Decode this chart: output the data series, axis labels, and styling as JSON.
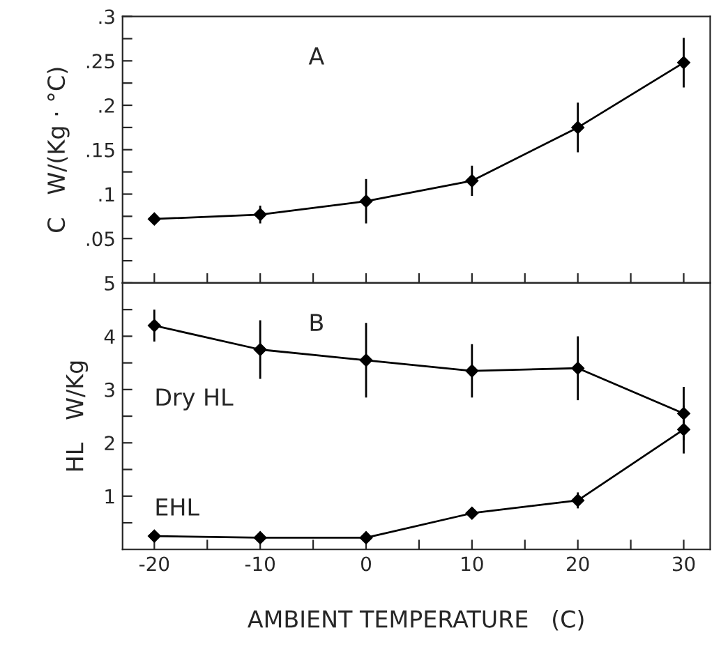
{
  "chart_data": [
    {
      "type": "line",
      "title": "A",
      "ylabel": "C   W/(Kg · °C)",
      "x": [
        -20,
        -10,
        0,
        10,
        20,
        30
      ],
      "series": [
        {
          "color": "#000000",
          "values": [
            0.072,
            0.077,
            0.092,
            0.115,
            0.175,
            0.248
          ],
          "errors": [
            0.003,
            0.01,
            0.025,
            0.017,
            0.028,
            0.028
          ]
        }
      ],
      "xlim": [
        -23,
        32.5
      ],
      "xticks": [
        -20,
        -15,
        -10,
        -5,
        0,
        5,
        10,
        15,
        20,
        25,
        30
      ],
      "ylim": [
        0,
        0.3
      ],
      "yticks": [
        {
          "value": 0.025,
          "label": null
        },
        {
          "value": 0.05,
          "label": ".05"
        },
        {
          "value": 0.075,
          "label": null
        },
        {
          "value": 0.1,
          "label": ".1"
        },
        {
          "value": 0.125,
          "label": null
        },
        {
          "value": 0.15,
          "label": ".15"
        },
        {
          "value": 0.175,
          "label": null
        },
        {
          "value": 0.2,
          "label": ".2"
        },
        {
          "value": 0.225,
          "label": null
        },
        {
          "value": 0.25,
          "label": ".25"
        },
        {
          "value": 0.275,
          "label": null
        },
        {
          "value": 0.3,
          "label": ".3"
        }
      ],
      "tick_labels": "y",
      "marker": "diamond",
      "line_style": "solid",
      "grid": false
    },
    {
      "type": "line",
      "title": "B",
      "xlabel": "AMBIENT TEMPERATURE   (C)",
      "ylabel": "HL   W/Kg",
      "x": [
        -20,
        -10,
        0,
        10,
        20,
        30
      ],
      "series": [
        {
          "name": "Dry HL",
          "color": "#000000",
          "values": [
            4.2,
            3.75,
            3.55,
            3.35,
            3.4,
            2.55
          ],
          "errors": [
            0.3,
            0.55,
            0.7,
            0.5,
            0.6,
            0.5
          ]
        },
        {
          "name": "EHL",
          "color": "#000000",
          "values": [
            0.25,
            0.22,
            0.22,
            0.68,
            0.92,
            2.25
          ],
          "errors": [
            0.03,
            0.03,
            0.05,
            0.1,
            0.15,
            0.45
          ]
        }
      ],
      "xlim": [
        -23,
        32.5
      ],
      "xticks": [
        {
          "value": -20,
          "label": "-20"
        },
        {
          "value": -15,
          "label": null
        },
        {
          "value": -10,
          "label": "-10"
        },
        {
          "value": -5,
          "label": null
        },
        0,
        {
          "value": 5,
          "label": null
        },
        10,
        {
          "value": 15,
          "label": null
        },
        20,
        {
          "value": 25,
          "label": null
        },
        30
      ],
      "ylim": [
        0,
        5
      ],
      "yticks": [
        {
          "value": 0.5,
          "label": null
        },
        1,
        {
          "value": 1.5,
          "label": null
        },
        2,
        {
          "value": 2.5,
          "label": null
        },
        3,
        {
          "value": 3.5,
          "label": null
        },
        4,
        {
          "value": 4.5,
          "label": null
        },
        5
      ],
      "marker": "diamond",
      "line_style": "solid",
      "grid": false
    }
  ]
}
